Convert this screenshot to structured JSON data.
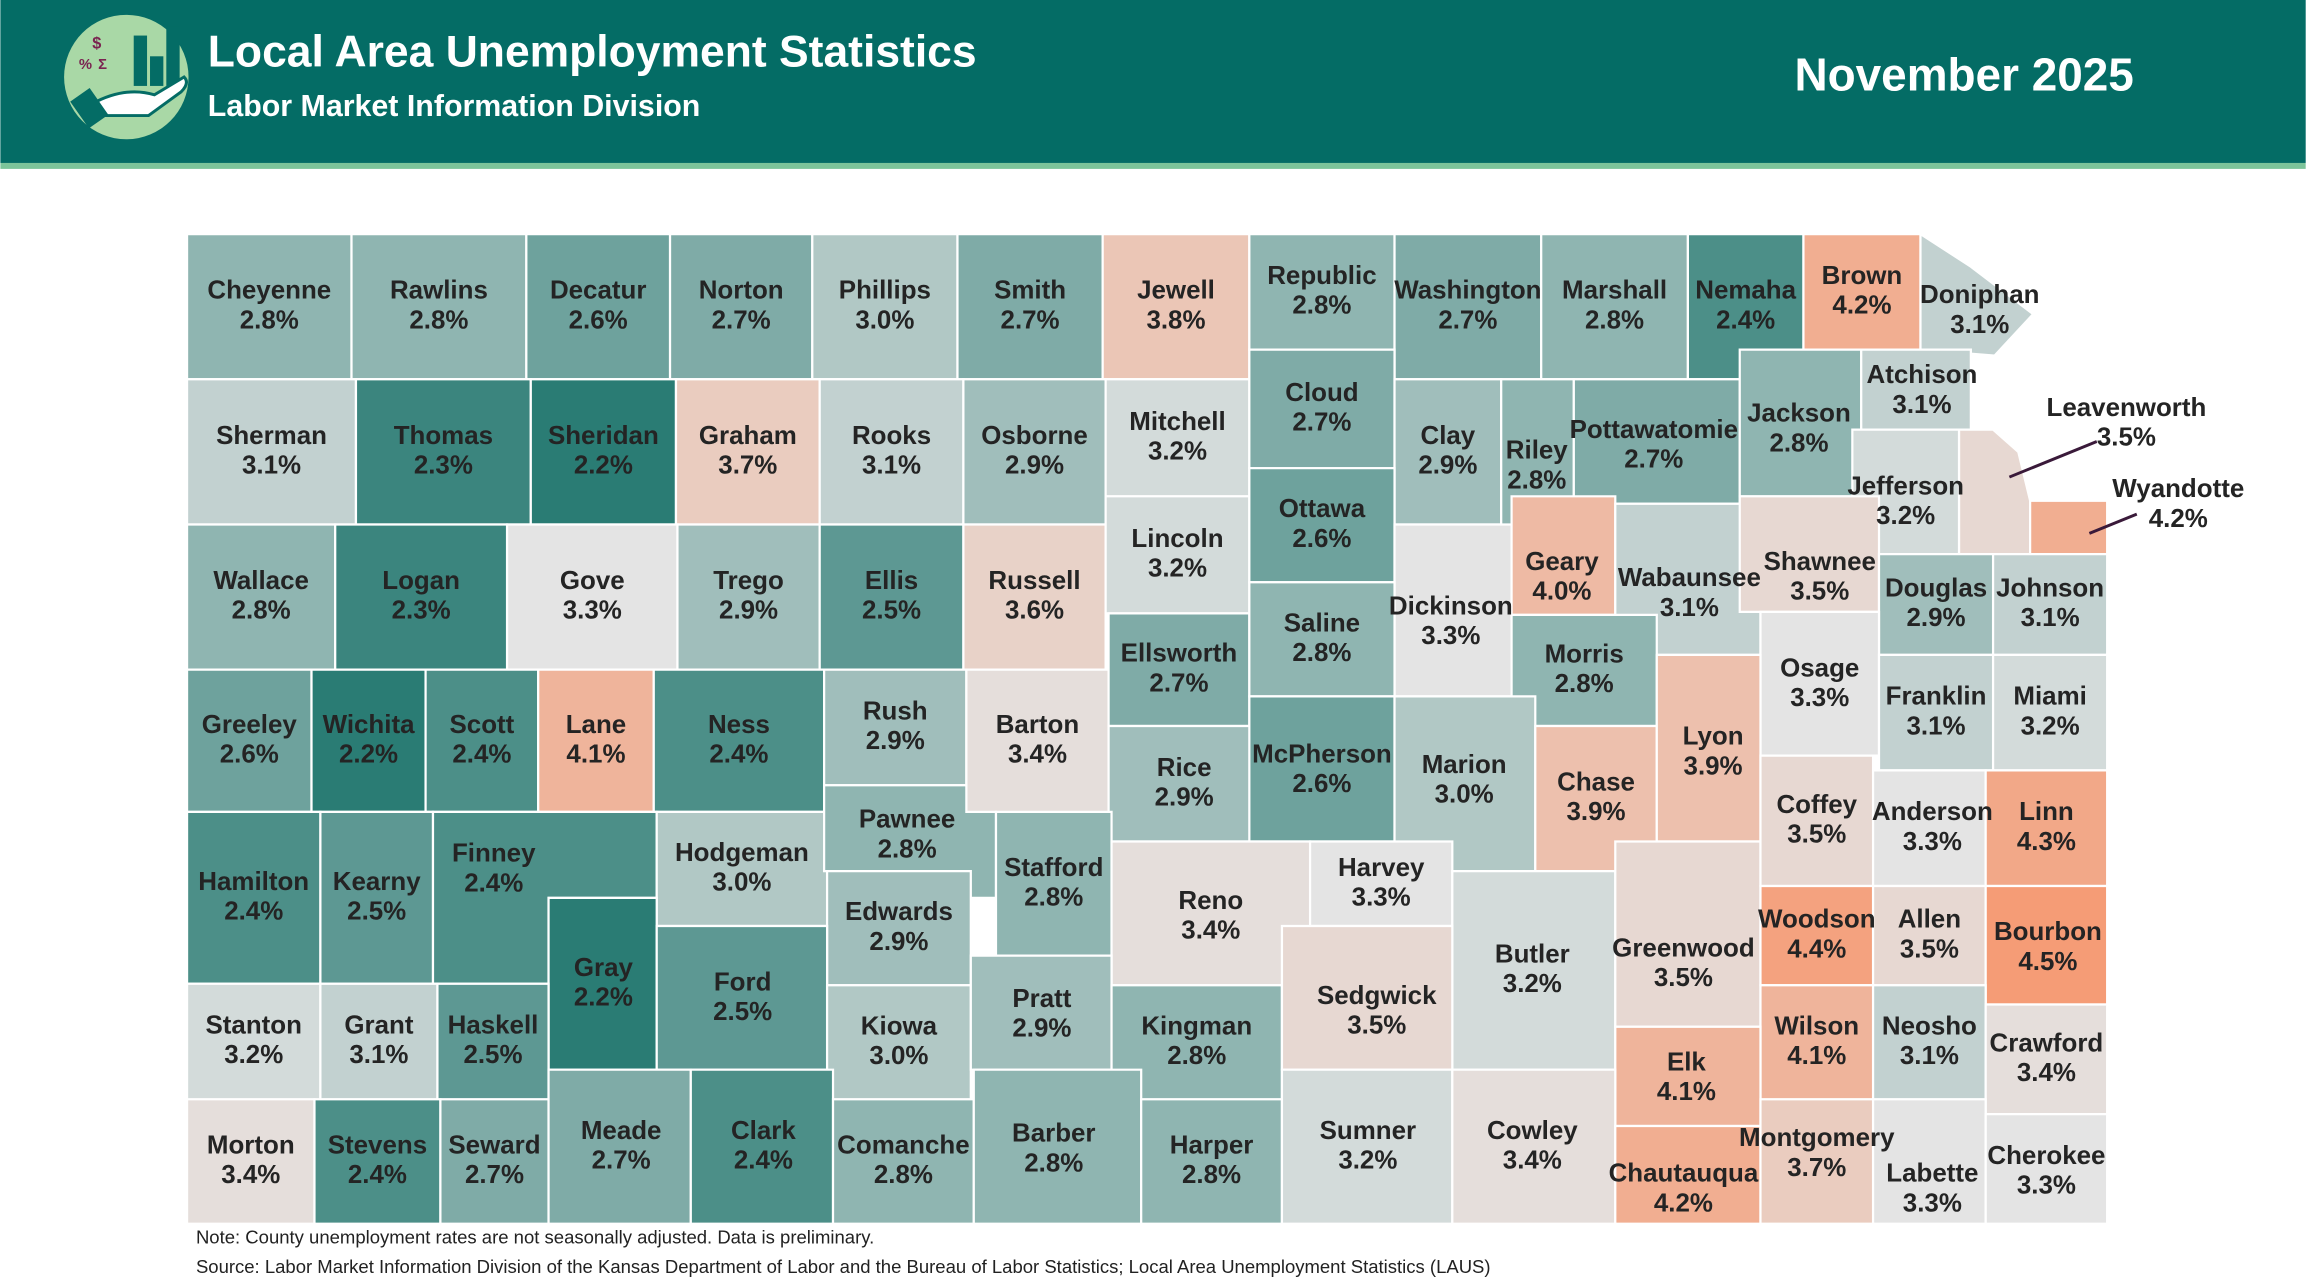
{
  "header": {
    "title": "Local Area Unemployment Statistics",
    "subtitle": "Labor Market Information Division",
    "date": "November 2025"
  },
  "counties": [
    {
      "name": "Cheyenne",
      "rate": {
        "value": 2.8,
        "label": "2.8%"
      }
    },
    {
      "name": "Rawlins",
      "rate": {
        "value": 2.8,
        "label": "2.8%"
      }
    },
    {
      "name": "Decatur",
      "rate": {
        "value": 2.6,
        "label": "2.6%"
      }
    },
    {
      "name": "Norton",
      "rate": {
        "value": 2.7,
        "label": "2.7%"
      }
    },
    {
      "name": "Phillips",
      "rate": {
        "value": 3.0,
        "label": "3.0%"
      }
    },
    {
      "name": "Smith",
      "rate": {
        "value": 2.7,
        "label": "2.7%"
      }
    },
    {
      "name": "Jewell",
      "rate": {
        "value": 3.8,
        "label": "3.8%"
      }
    },
    {
      "name": "Republic",
      "rate": {
        "value": 2.8,
        "label": "2.8%"
      }
    },
    {
      "name": "Washington",
      "rate": {
        "value": 2.7,
        "label": "2.7%"
      }
    },
    {
      "name": "Marshall",
      "rate": {
        "value": 2.8,
        "label": "2.8%"
      }
    },
    {
      "name": "Nemaha",
      "rate": {
        "value": 2.4,
        "label": "2.4%"
      }
    },
    {
      "name": "Brown",
      "rate": {
        "value": 4.2,
        "label": "4.2%"
      }
    },
    {
      "name": "Doniphan",
      "rate": {
        "value": 3.1,
        "label": "3.1%"
      }
    },
    {
      "name": "Sherman",
      "rate": {
        "value": 3.1,
        "label": "3.1%"
      }
    },
    {
      "name": "Thomas",
      "rate": {
        "value": 2.3,
        "label": "2.3%"
      }
    },
    {
      "name": "Sheridan",
      "rate": {
        "value": 2.2,
        "label": "2.2%"
      }
    },
    {
      "name": "Graham",
      "rate": {
        "value": 3.7,
        "label": "3.7%"
      }
    },
    {
      "name": "Rooks",
      "rate": {
        "value": 3.1,
        "label": "3.1%"
      }
    },
    {
      "name": "Osborne",
      "rate": {
        "value": 2.9,
        "label": "2.9%"
      }
    },
    {
      "name": "Mitchell",
      "rate": {
        "value": 3.2,
        "label": "3.2%"
      }
    },
    {
      "name": "Cloud",
      "rate": {
        "value": 2.7,
        "label": "2.7%"
      }
    },
    {
      "name": "Clay",
      "rate": {
        "value": 2.9,
        "label": "2.9%"
      }
    },
    {
      "name": "Riley",
      "rate": {
        "value": 2.8,
        "label": "2.8%"
      }
    },
    {
      "name": "Pottawatomie",
      "rate": {
        "value": 2.7,
        "label": "2.7%"
      }
    },
    {
      "name": "Jackson",
      "rate": {
        "value": 2.8,
        "label": "2.8%"
      }
    },
    {
      "name": "Atchison",
      "rate": {
        "value": 3.1,
        "label": "3.1%"
      }
    },
    {
      "name": "Leavenworth",
      "rate": {
        "value": 3.5,
        "label": "3.5%"
      }
    },
    {
      "name": "Wyandotte",
      "rate": {
        "value": 4.2,
        "label": "4.2%"
      }
    },
    {
      "name": "Jefferson",
      "rate": {
        "value": 3.2,
        "label": "3.2%"
      }
    },
    {
      "name": "Wallace",
      "rate": {
        "value": 2.8,
        "label": "2.8%"
      }
    },
    {
      "name": "Logan",
      "rate": {
        "value": 2.3,
        "label": "2.3%"
      }
    },
    {
      "name": "Gove",
      "rate": {
        "value": 3.3,
        "label": "3.3%"
      }
    },
    {
      "name": "Trego",
      "rate": {
        "value": 2.9,
        "label": "2.9%"
      }
    },
    {
      "name": "Ellis",
      "rate": {
        "value": 2.5,
        "label": "2.5%"
      }
    },
    {
      "name": "Russell",
      "rate": {
        "value": 3.6,
        "label": "3.6%"
      }
    },
    {
      "name": "Lincoln",
      "rate": {
        "value": 3.2,
        "label": "3.2%"
      }
    },
    {
      "name": "Ottawa",
      "rate": {
        "value": 2.6,
        "label": "2.6%"
      }
    },
    {
      "name": "Dickinson",
      "rate": {
        "value": 3.3,
        "label": "3.3%"
      }
    },
    {
      "name": "Geary",
      "rate": {
        "value": 4.0,
        "label": "4.0%"
      }
    },
    {
      "name": "Wabaunsee",
      "rate": {
        "value": 3.1,
        "label": "3.1%"
      }
    },
    {
      "name": "Shawnee",
      "rate": {
        "value": 3.5,
        "label": "3.5%"
      }
    },
    {
      "name": "Douglas",
      "rate": {
        "value": 2.9,
        "label": "2.9%"
      }
    },
    {
      "name": "Johnson",
      "rate": {
        "value": 3.1,
        "label": "3.1%"
      }
    },
    {
      "name": "Greeley",
      "rate": {
        "value": 2.6,
        "label": "2.6%"
      }
    },
    {
      "name": "Wichita",
      "rate": {
        "value": 2.2,
        "label": "2.2%"
      }
    },
    {
      "name": "Scott",
      "rate": {
        "value": 2.4,
        "label": "2.4%"
      }
    },
    {
      "name": "Lane",
      "rate": {
        "value": 4.1,
        "label": "4.1%"
      }
    },
    {
      "name": "Ness",
      "rate": {
        "value": 2.4,
        "label": "2.4%"
      }
    },
    {
      "name": "Rush",
      "rate": {
        "value": 2.9,
        "label": "2.9%"
      }
    },
    {
      "name": "Barton",
      "rate": {
        "value": 3.4,
        "label": "3.4%"
      }
    },
    {
      "name": "Ellsworth",
      "rate": {
        "value": 2.7,
        "label": "2.7%"
      }
    },
    {
      "name": "Saline",
      "rate": {
        "value": 2.8,
        "label": "2.8%"
      }
    },
    {
      "name": "Morris",
      "rate": {
        "value": 2.8,
        "label": "2.8%"
      }
    },
    {
      "name": "Osage",
      "rate": {
        "value": 3.3,
        "label": "3.3%"
      }
    },
    {
      "name": "Franklin",
      "rate": {
        "value": 3.1,
        "label": "3.1%"
      }
    },
    {
      "name": "Miami",
      "rate": {
        "value": 3.2,
        "label": "3.2%"
      }
    },
    {
      "name": "Rice",
      "rate": {
        "value": 2.9,
        "label": "2.9%"
      }
    },
    {
      "name": "McPherson",
      "rate": {
        "value": 2.6,
        "label": "2.6%"
      }
    },
    {
      "name": "Marion",
      "rate": {
        "value": 3.0,
        "label": "3.0%"
      }
    },
    {
      "name": "Chase",
      "rate": {
        "value": 3.9,
        "label": "3.9%"
      }
    },
    {
      "name": "Lyon",
      "rate": {
        "value": 3.9,
        "label": "3.9%"
      }
    },
    {
      "name": "Hamilton",
      "rate": {
        "value": 2.4,
        "label": "2.4%"
      }
    },
    {
      "name": "Kearny",
      "rate": {
        "value": 2.5,
        "label": "2.5%"
      }
    },
    {
      "name": "Finney",
      "rate": {
        "value": 2.4,
        "label": "2.4%"
      }
    },
    {
      "name": "Hodgeman",
      "rate": {
        "value": 3.0,
        "label": "3.0%"
      }
    },
    {
      "name": "Pawnee",
      "rate": {
        "value": 2.8,
        "label": "2.8%"
      }
    },
    {
      "name": "Stafford",
      "rate": {
        "value": 2.8,
        "label": "2.8%"
      }
    },
    {
      "name": "Edwards",
      "rate": {
        "value": 2.9,
        "label": "2.9%"
      }
    },
    {
      "name": "Reno",
      "rate": {
        "value": 3.4,
        "label": "3.4%"
      }
    },
    {
      "name": "Harvey",
      "rate": {
        "value": 3.3,
        "label": "3.3%"
      }
    },
    {
      "name": "Butler",
      "rate": {
        "value": 3.2,
        "label": "3.2%"
      }
    },
    {
      "name": "Greenwood",
      "rate": {
        "value": 3.5,
        "label": "3.5%"
      }
    },
    {
      "name": "Coffey",
      "rate": {
        "value": 3.5,
        "label": "3.5%"
      }
    },
    {
      "name": "Anderson",
      "rate": {
        "value": 3.3,
        "label": "3.3%"
      }
    },
    {
      "name": "Linn",
      "rate": {
        "value": 4.3,
        "label": "4.3%"
      }
    },
    {
      "name": "Gray",
      "rate": {
        "value": 2.2,
        "label": "2.2%"
      }
    },
    {
      "name": "Ford",
      "rate": {
        "value": 2.5,
        "label": "2.5%"
      }
    },
    {
      "name": "Kiowa",
      "rate": {
        "value": 3.0,
        "label": "3.0%"
      }
    },
    {
      "name": "Pratt",
      "rate": {
        "value": 2.9,
        "label": "2.9%"
      }
    },
    {
      "name": "Kingman",
      "rate": {
        "value": 2.8,
        "label": "2.8%"
      }
    },
    {
      "name": "Sedgwick",
      "rate": {
        "value": 3.5,
        "label": "3.5%"
      }
    },
    {
      "name": "Woodson",
      "rate": {
        "value": 4.4,
        "label": "4.4%"
      }
    },
    {
      "name": "Allen",
      "rate": {
        "value": 3.5,
        "label": "3.5%"
      }
    },
    {
      "name": "Bourbon",
      "rate": {
        "value": 4.5,
        "label": "4.5%"
      }
    },
    {
      "name": "Stanton",
      "rate": {
        "value": 3.2,
        "label": "3.2%"
      }
    },
    {
      "name": "Grant",
      "rate": {
        "value": 3.1,
        "label": "3.1%"
      }
    },
    {
      "name": "Haskell",
      "rate": {
        "value": 2.5,
        "label": "2.5%"
      }
    },
    {
      "name": "Wilson",
      "rate": {
        "value": 4.1,
        "label": "4.1%"
      }
    },
    {
      "name": "Neosho",
      "rate": {
        "value": 3.1,
        "label": "3.1%"
      }
    },
    {
      "name": "Crawford",
      "rate": {
        "value": 3.4,
        "label": "3.4%"
      }
    },
    {
      "name": "Elk",
      "rate": {
        "value": 4.1,
        "label": "4.1%"
      }
    },
    {
      "name": "Morton",
      "rate": {
        "value": 3.4,
        "label": "3.4%"
      }
    },
    {
      "name": "Stevens",
      "rate": {
        "value": 2.4,
        "label": "2.4%"
      }
    },
    {
      "name": "Seward",
      "rate": {
        "value": 2.7,
        "label": "2.7%"
      }
    },
    {
      "name": "Meade",
      "rate": {
        "value": 2.7,
        "label": "2.7%"
      }
    },
    {
      "name": "Clark",
      "rate": {
        "value": 2.4,
        "label": "2.4%"
      }
    },
    {
      "name": "Comanche",
      "rate": {
        "value": 2.8,
        "label": "2.8%"
      }
    },
    {
      "name": "Barber",
      "rate": {
        "value": 2.8,
        "label": "2.8%"
      }
    },
    {
      "name": "Harper",
      "rate": {
        "value": 2.8,
        "label": "2.8%"
      }
    },
    {
      "name": "Sumner",
      "rate": {
        "value": 3.2,
        "label": "3.2%"
      }
    },
    {
      "name": "Cowley",
      "rate": {
        "value": 3.4,
        "label": "3.4%"
      }
    },
    {
      "name": "Chautauqua",
      "rate": {
        "value": 4.2,
        "label": "4.2%"
      }
    },
    {
      "name": "Montgomery",
      "rate": {
        "value": 3.7,
        "label": "3.7%"
      }
    },
    {
      "name": "Labette",
      "rate": {
        "value": 3.3,
        "label": "3.3%"
      }
    },
    {
      "name": "Cherokee",
      "rate": {
        "value": 3.3,
        "label": "3.3%"
      }
    }
  ],
  "notes": [
    "Note: County unemployment rates are not seasonally adjusted. Data is preliminary.",
    "Source: Labor Market Information Division of the Kansas Department of Labor and the Bureau of Labor Statistics; Local Area Unemployment Statistics (LAUS)"
  ]
}
